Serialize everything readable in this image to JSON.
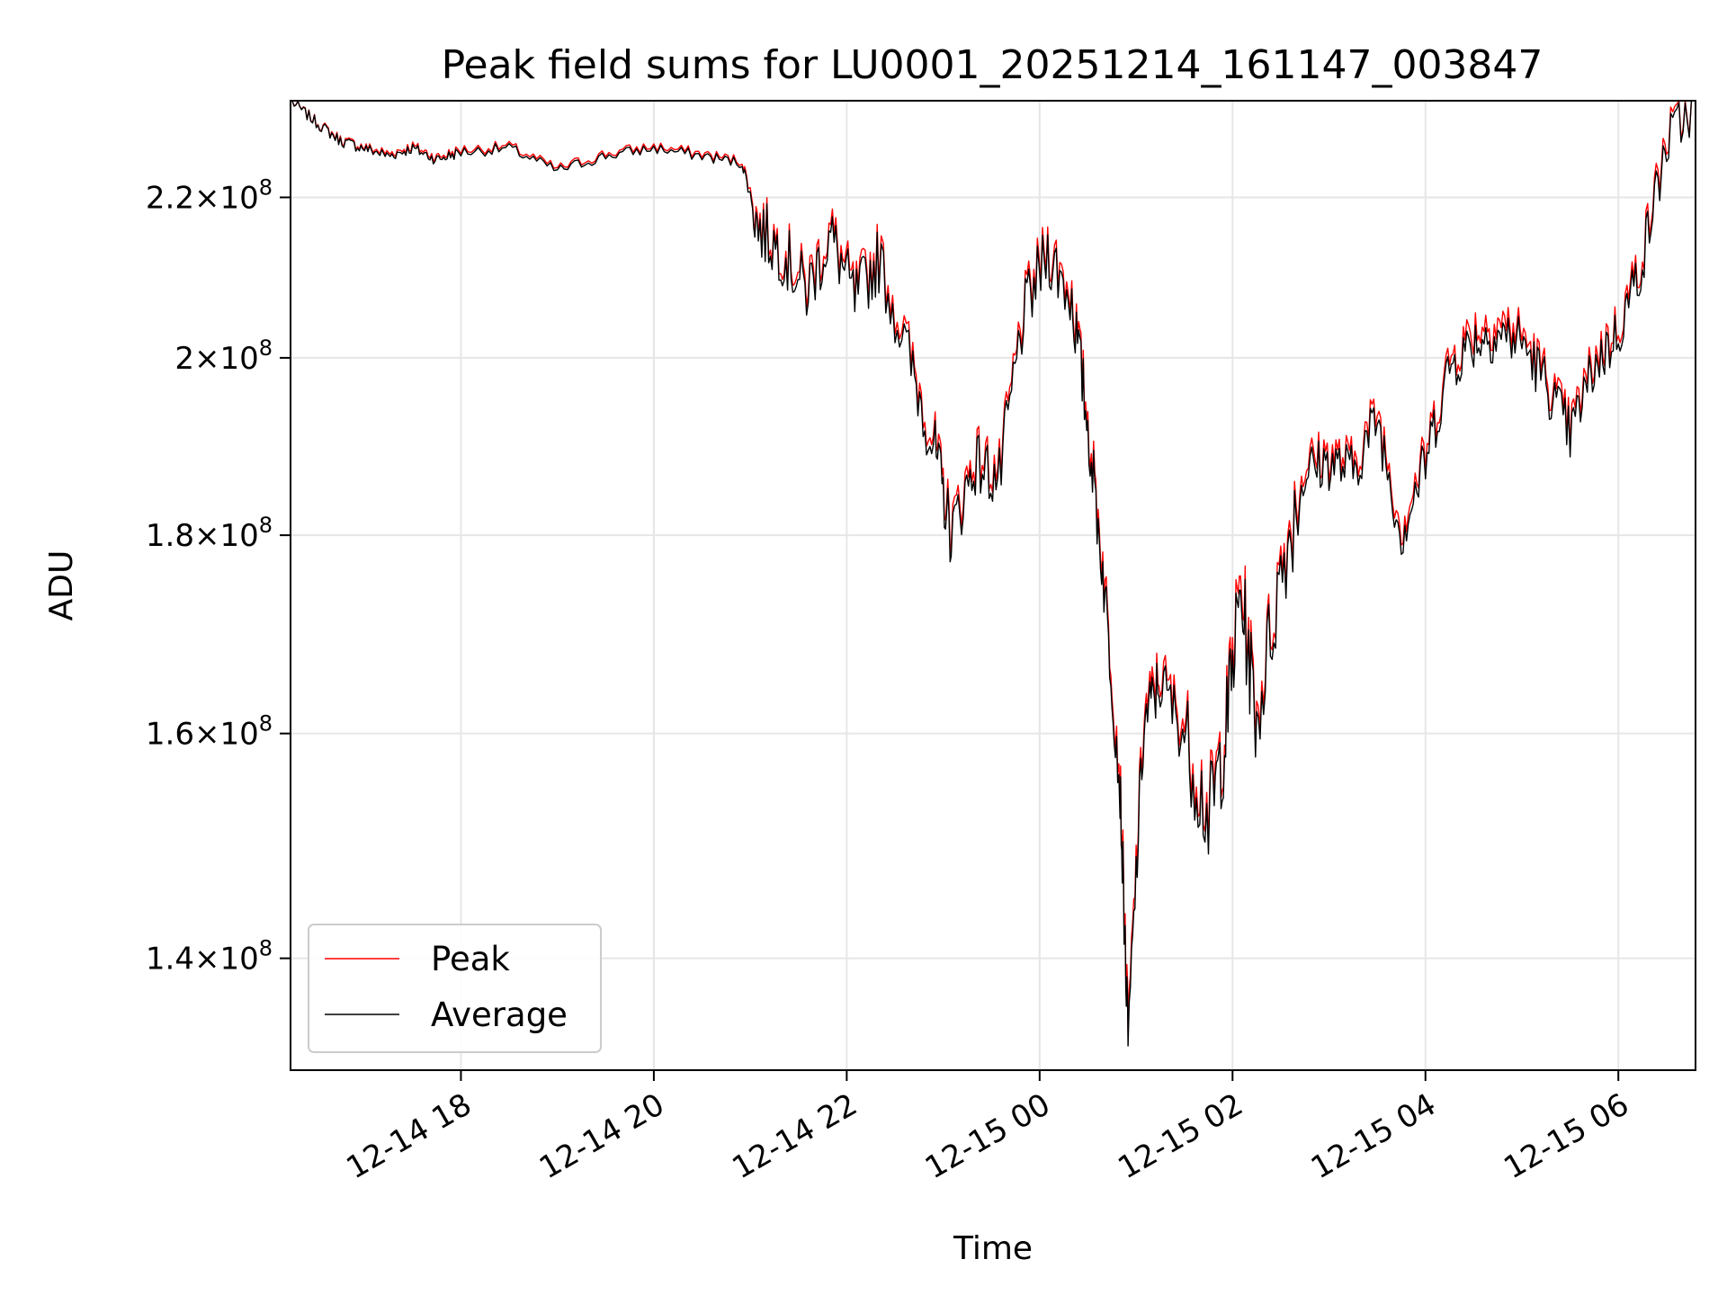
{
  "chart_data": {
    "type": "line",
    "title": "Peak field sums for LU0001_20251214_161147_003847",
    "xlabel": "Time",
    "ylabel": "ADU",
    "yscale": "log",
    "xlim": [
      "2025-12-14 16:14",
      "2025-12-15 06:48"
    ],
    "ylim": [
      131000000.0,
      233000000.0
    ],
    "x_ticks": [
      {
        "value": "2025-12-14 18:00",
        "label": "12-14 18"
      },
      {
        "value": "2025-12-14 20:00",
        "label": "12-14 20"
      },
      {
        "value": "2025-12-14 22:00",
        "label": "12-14 22"
      },
      {
        "value": "2025-12-15 00:00",
        "label": "12-15 00"
      },
      {
        "value": "2025-12-15 02:00",
        "label": "12-15 02"
      },
      {
        "value": "2025-12-15 04:00",
        "label": "12-15 04"
      },
      {
        "value": "2025-12-15 06:00",
        "label": "12-15 06"
      }
    ],
    "y_ticks": [
      {
        "value": 140000000,
        "mantissa": "1.4",
        "base": "10",
        "exp": "8"
      },
      {
        "value": 160000000,
        "mantissa": "1.6",
        "base": "10",
        "exp": "8"
      },
      {
        "value": 180000000,
        "mantissa": "1.8",
        "base": "10",
        "exp": "8"
      },
      {
        "value": 200000000,
        "mantissa": "2",
        "base": "10",
        "exp": "8"
      },
      {
        "value": 220000000,
        "mantissa": "2.2",
        "base": "10",
        "exp": "8"
      }
    ],
    "grid": true,
    "legend_position": "lower-left",
    "series": [
      {
        "name": "Peak",
        "color": "#ff0000"
      },
      {
        "name": "Average",
        "color": "#000000"
      }
    ],
    "x": [
      "2025-12-14 16:14",
      "2025-12-14 16:30",
      "2025-12-14 16:45",
      "2025-12-14 17:00",
      "2025-12-14 17:15",
      "2025-12-14 17:30",
      "2025-12-14 17:45",
      "2025-12-14 18:00",
      "2025-12-14 18:30",
      "2025-12-14 19:00",
      "2025-12-14 19:30",
      "2025-12-14 20:00",
      "2025-12-14 20:30",
      "2025-12-14 20:55",
      "2025-12-14 21:05",
      "2025-12-14 21:20",
      "2025-12-14 21:35",
      "2025-12-14 21:50",
      "2025-12-14 22:05",
      "2025-12-14 22:20",
      "2025-12-14 22:40",
      "2025-12-14 22:55",
      "2025-12-14 23:05",
      "2025-12-14 23:20",
      "2025-12-14 23:35",
      "2025-12-14 23:50",
      "2025-12-15 00:05",
      "2025-12-15 00:20",
      "2025-12-15 00:30",
      "2025-12-15 00:40",
      "2025-12-15 00:50",
      "2025-12-15 00:55",
      "2025-12-15 01:05",
      "2025-12-15 01:15",
      "2025-12-15 01:30",
      "2025-12-15 01:45",
      "2025-12-15 01:55",
      "2025-12-15 02:05",
      "2025-12-15 02:15",
      "2025-12-15 02:30",
      "2025-12-15 02:45",
      "2025-12-15 03:00",
      "2025-12-15 03:15",
      "2025-12-15 03:30",
      "2025-12-15 03:45",
      "2025-12-15 04:00",
      "2025-12-15 04:15",
      "2025-12-15 04:30",
      "2025-12-15 04:45",
      "2025-12-15 05:00",
      "2025-12-15 05:15",
      "2025-12-15 05:30",
      "2025-12-15 05:45",
      "2025-12-15 06:00",
      "2025-12-15 06:15",
      "2025-12-15 06:30",
      "2025-12-15 06:48"
    ],
    "average": [
      233000000,
      230000000,
      227500000,
      226500000,
      225500000,
      226500000,
      225000000,
      226000000,
      226500000,
      223500000,
      225500000,
      226500000,
      225500000,
      224500000,
      216000000,
      213000000,
      208000000,
      215000000,
      207000000,
      212000000,
      199000000,
      189000000,
      180000000,
      188000000,
      186000000,
      205000000,
      213000000,
      207000000,
      192000000,
      175000000,
      155000000,
      133000000,
      161000000,
      165000000,
      160000000,
      152000000,
      159000000,
      174000000,
      161000000,
      176000000,
      187000000,
      188000000,
      187000000,
      193000000,
      180000000,
      188000000,
      199000000,
      202000000,
      203000000,
      202000000,
      197000000,
      191000000,
      199000000,
      203000000,
      212000000,
      227000000,
      233000000
    ],
    "peak": [
      233000000,
      230100000,
      227700000,
      226700000,
      225800000,
      226800000,
      225300000,
      226300000,
      226800000,
      223800000,
      225800000,
      226800000,
      225800000,
      224800000,
      216800000,
      213800000,
      209000000,
      216000000,
      208000000,
      213000000,
      200000000,
      190000000,
      181000000,
      189000000,
      187000000,
      206000000,
      214000000,
      208000000,
      193000000,
      176000000,
      156000000,
      134000000,
      162000000,
      166000000,
      161000000,
      153000000,
      160000000,
      175500000,
      162000000,
      177000000,
      188000000,
      189000000,
      188000000,
      194000000,
      181000000,
      189000000,
      200000000,
      203500000,
      204500000,
      203000000,
      198000000,
      192000000,
      200000000,
      204000000,
      213000000,
      228000000,
      233000000
    ]
  }
}
